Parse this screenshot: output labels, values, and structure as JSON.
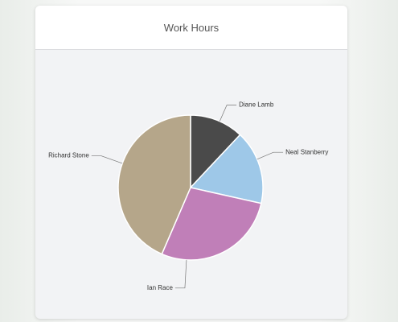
{
  "chart_data": {
    "type": "pie",
    "title": "Work Hours",
    "categories": [
      "Diane Lamb",
      "Neal Stanberry",
      "Ian Race",
      "Richard Stone"
    ],
    "values": [
      12,
      16.5,
      28,
      43.5
    ],
    "colors": [
      "#4a4a4a",
      "#9ec8e8",
      "#c07fb8",
      "#b5a68a"
    ]
  }
}
